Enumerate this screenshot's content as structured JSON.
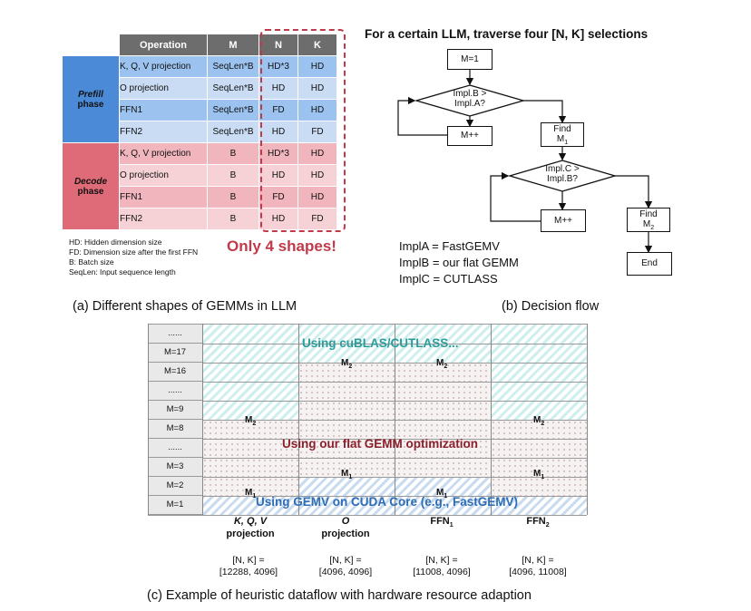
{
  "panel_a": {
    "headers": {
      "operation": "Operation",
      "m": "M",
      "n": "N",
      "k": "K"
    },
    "prefill_label": {
      "line1": "Prefill",
      "line2": "phase"
    },
    "decode_label": {
      "line1": "Decode",
      "line2": "phase"
    },
    "prefill_rows": [
      {
        "op": "K, Q, V projection",
        "m": "SeqLen*B",
        "n": "HD*3",
        "k": "HD"
      },
      {
        "op": "O projection",
        "m": "SeqLen*B",
        "n": "HD",
        "k": "HD"
      },
      {
        "op": "FFN1",
        "m": "SeqLen*B",
        "n": "FD",
        "k": "HD"
      },
      {
        "op": "FFN2",
        "m": "SeqLen*B",
        "n": "HD",
        "k": "FD"
      }
    ],
    "decode_rows": [
      {
        "op": "K, Q, V projection",
        "m": "B",
        "n": "HD*3",
        "k": "HD"
      },
      {
        "op": "O projection",
        "m": "B",
        "n": "HD",
        "k": "HD"
      },
      {
        "op": "FFN1",
        "m": "B",
        "n": "FD",
        "k": "HD"
      },
      {
        "op": "FFN2",
        "m": "B",
        "n": "HD",
        "k": "FD"
      }
    ],
    "notes": [
      "HD: Hidden dimension size",
      "FD: Dimension size after the first FFN",
      "B: Batch size",
      "SeqLen: Input sequence length"
    ],
    "highlight": "Only 4 shapes!",
    "caption": "(a)  Different shapes of GEMMs in LLM"
  },
  "panel_b": {
    "title": "For a certain LLM, traverse four [N, K] selections",
    "nodes": {
      "m1": "M=1",
      "d1_l1": "Impl.B >",
      "d1_l2": "Impl.A?",
      "mpp1": "M++",
      "find1_l1": "Find",
      "find1_l2": "M",
      "d2_l1": "Impl.C >",
      "d2_l2": "Impl.B?",
      "mpp2": "M++",
      "find2_l1": "Find",
      "find2_l2": "M",
      "end": "End"
    },
    "impls": [
      "ImplA = FastGEMV",
      "ImplB = our flat GEMM",
      "ImplC = CUTLASS"
    ],
    "caption": "(b) Decision flow"
  },
  "panel_c": {
    "row_labels": [
      "......",
      "M=17",
      "M=16",
      "......",
      "M=9",
      "M=8",
      "......",
      "M=3",
      "M=2",
      "M=1"
    ],
    "zone_texts": {
      "top": "Using cuBLAS/CUTLASS...",
      "mid": "Using our flat GEMM optimization",
      "bot": "Using GEMV on CUDA Core (e.g., FastGEMV)"
    },
    "m_labels": {
      "m2": "M",
      "m1": "M",
      "sub2": "2",
      "sub1": "1"
    },
    "columns": [
      {
        "line1": "K, Q, V",
        "line2": "projection",
        "nk1": "[N, K] =",
        "nk2": "[12288, 4096]"
      },
      {
        "line1": "O",
        "line2": "projection",
        "nk1": "[N, K] =",
        "nk2": "[4096, 4096]"
      },
      {
        "line1": "FFN",
        "sub": "1",
        "nk1": "[N, K] =",
        "nk2": "[11008, 4096]"
      },
      {
        "line1": "FFN",
        "sub": "2",
        "nk1": "[N, K] =",
        "nk2": "[4096, 11008]"
      }
    ],
    "caption": "(c) Example of heuristic dataflow with hardware resource adaption",
    "colors": {
      "top_zone": "#cfeeee",
      "top_text": "#2a9d9b",
      "mid_text": "#8c1f2c",
      "bot_zone": "#c9dbef",
      "bot_text": "#2d6db4"
    }
  }
}
